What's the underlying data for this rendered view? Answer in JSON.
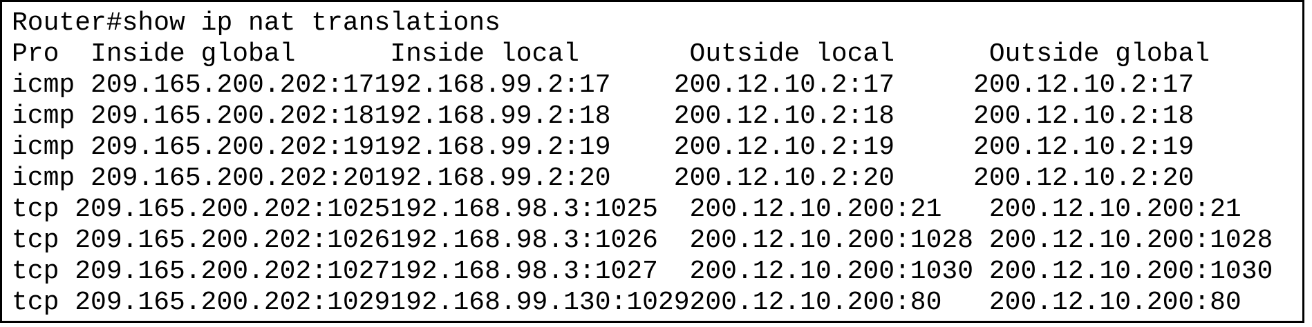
{
  "terminal": {
    "prompt_line": "Router#show ip nat translations",
    "header_line": "Pro  Inside global      Inside local       Outside local      Outside global",
    "rows": [
      "icmp 209.165.200.202:17192.168.99.2:17    200.12.10.2:17     200.12.10.2:17",
      "icmp 209.165.200.202:18192.168.99.2:18    200.12.10.2:18     200.12.10.2:18",
      "icmp 209.165.200.202:19192.168.99.2:19    200.12.10.2:19     200.12.10.2:19",
      "icmp 209.165.200.202:20192.168.99.2:20    200.12.10.2:20     200.12.10.2:20",
      "tcp 209.165.200.202:1025192.168.98.3:1025  200.12.10.200:21   200.12.10.200:21",
      "tcp 209.165.200.202:1026192.168.98.3:1026  200.12.10.200:1028 200.12.10.200:1028",
      "tcp 209.165.200.202:1027192.168.98.3:1027  200.12.10.200:1030 200.12.10.200:1030",
      "tcp 209.165.200.202:1029192.168.99.130:1029200.12.10.200:80   200.12.10.200:80"
    ]
  }
}
